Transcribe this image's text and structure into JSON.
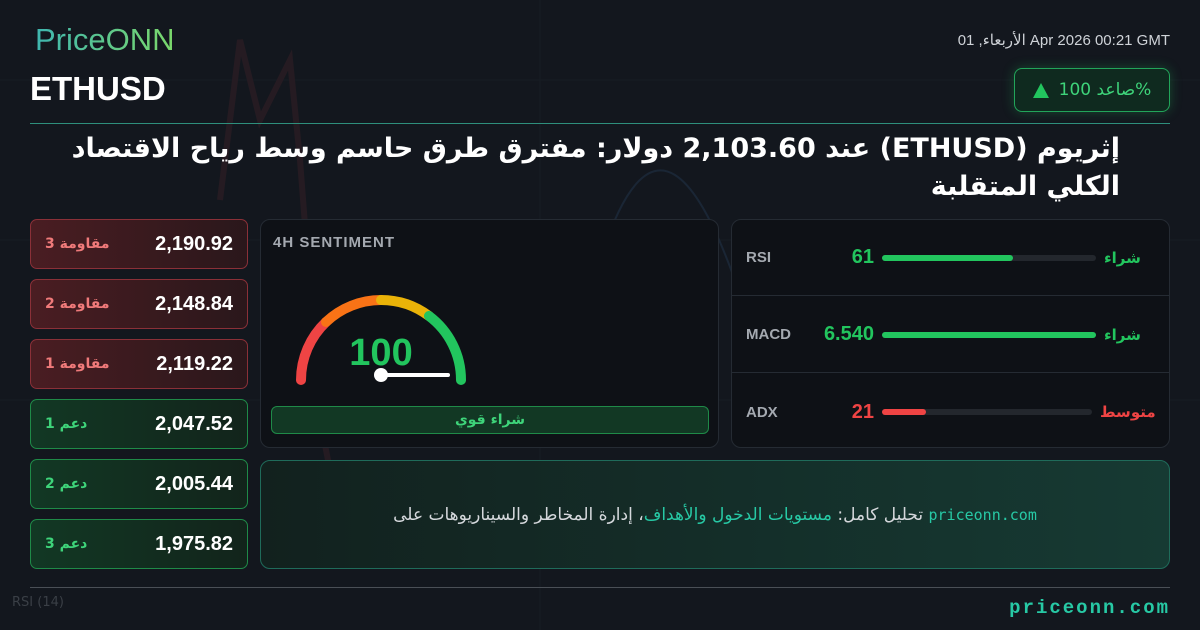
{
  "header": {
    "logo": "PriceONN",
    "datetime": "01 ,الأربعاء Apr 2026 00:21 GMT",
    "symbol": "ETHUSD",
    "badge": {
      "label": "%صاعد 100",
      "icon": "triangle-up-icon"
    }
  },
  "title": "إثريوم (ETHUSD) عند 2,103.60 دولار: مفترق طرق حاسم وسط رياح الاقتصاد الكلي المتقلبة",
  "levels": [
    {
      "label": "مقاومة 3",
      "value": "2,190.92",
      "type": "resistance"
    },
    {
      "label": "مقاومة 2",
      "value": "2,148.84",
      "type": "resistance"
    },
    {
      "label": "مقاومة 1",
      "value": "2,119.22",
      "type": "resistance"
    },
    {
      "label": "دعم 1",
      "value": "2,047.52",
      "type": "support"
    },
    {
      "label": "دعم 2",
      "value": "2,005.44",
      "type": "support"
    },
    {
      "label": "دعم 3",
      "value": "1,975.82",
      "type": "support"
    }
  ],
  "sentiment": {
    "heading": "4H SENTIMENT",
    "value": "100",
    "verdict": "شراء قوي"
  },
  "indicators": [
    {
      "name": "RSI",
      "value": "61",
      "fill": 0.61,
      "signal": "شراء",
      "color": "#22c55e"
    },
    {
      "name": "MACD",
      "value": "6.540",
      "fill": 1.0,
      "signal": "شراء",
      "color": "#22c55e"
    },
    {
      "name": "ADX",
      "value": "21",
      "fill": 0.21,
      "signal": "متوسط",
      "color": "#ef4444"
    }
  ],
  "cta": {
    "site": "priceonn.com",
    "text1": " تحليل كامل: ",
    "link": "مستويات الدخول والأهداف",
    "text2": "، إدارة المخاطر والسيناريوهات على"
  },
  "background": {
    "rsi_label": "RSI",
    "rsi_period": "(14)"
  },
  "footer": {
    "site": "priceonn.com"
  },
  "colors": {
    "accent": "#27c9a5",
    "buy": "#22c55e",
    "sell": "#ef4444"
  }
}
